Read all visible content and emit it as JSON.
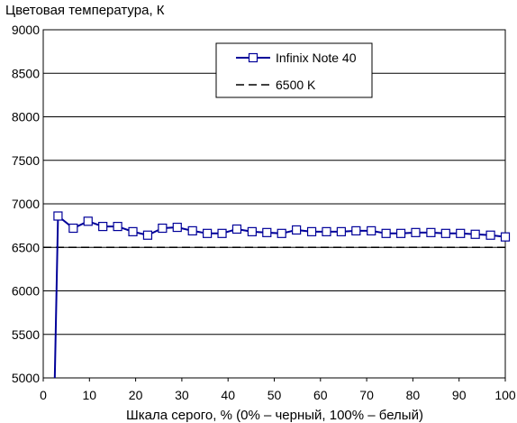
{
  "chart_data": {
    "type": "line",
    "title": "Цветовая температура, К",
    "xlabel": "Шкала серого, % (0% – черный, 100% – белый)",
    "ylabel": "",
    "xlim": [
      0,
      100
    ],
    "ylim": [
      5000,
      9000
    ],
    "x_ticks": [
      0,
      10,
      20,
      30,
      40,
      50,
      60,
      70,
      80,
      90,
      100
    ],
    "y_ticks": [
      5000,
      5500,
      6000,
      6500,
      7000,
      7500,
      8000,
      8500,
      9000
    ],
    "grid": "horizontal",
    "legend_position": "top-right",
    "series": [
      {
        "name": "Infinix Note 40",
        "color": "#000099",
        "marker": "square",
        "x": [
          2.5,
          3.2,
          6.5,
          9.7,
          12.9,
          16.1,
          19.4,
          22.6,
          25.8,
          29.0,
          32.3,
          35.5,
          38.7,
          41.9,
          45.2,
          48.4,
          51.6,
          54.8,
          58.1,
          61.3,
          64.5,
          67.7,
          71.0,
          74.2,
          77.4,
          80.6,
          83.9,
          87.1,
          90.3,
          93.5,
          96.8,
          100.0
        ],
        "y": [
          5000,
          6860,
          6720,
          6800,
          6740,
          6740,
          6680,
          6640,
          6720,
          6730,
          6690,
          6660,
          6660,
          6710,
          6680,
          6670,
          6660,
          6700,
          6680,
          6680,
          6680,
          6690,
          6690,
          6660,
          6660,
          6670,
          6670,
          6660,
          6660,
          6650,
          6640,
          6620
        ]
      },
      {
        "name": "6500 K",
        "color": "#000000",
        "dash": "dashed",
        "x": [
          0,
          100
        ],
        "y": [
          6500,
          6500
        ]
      }
    ]
  }
}
